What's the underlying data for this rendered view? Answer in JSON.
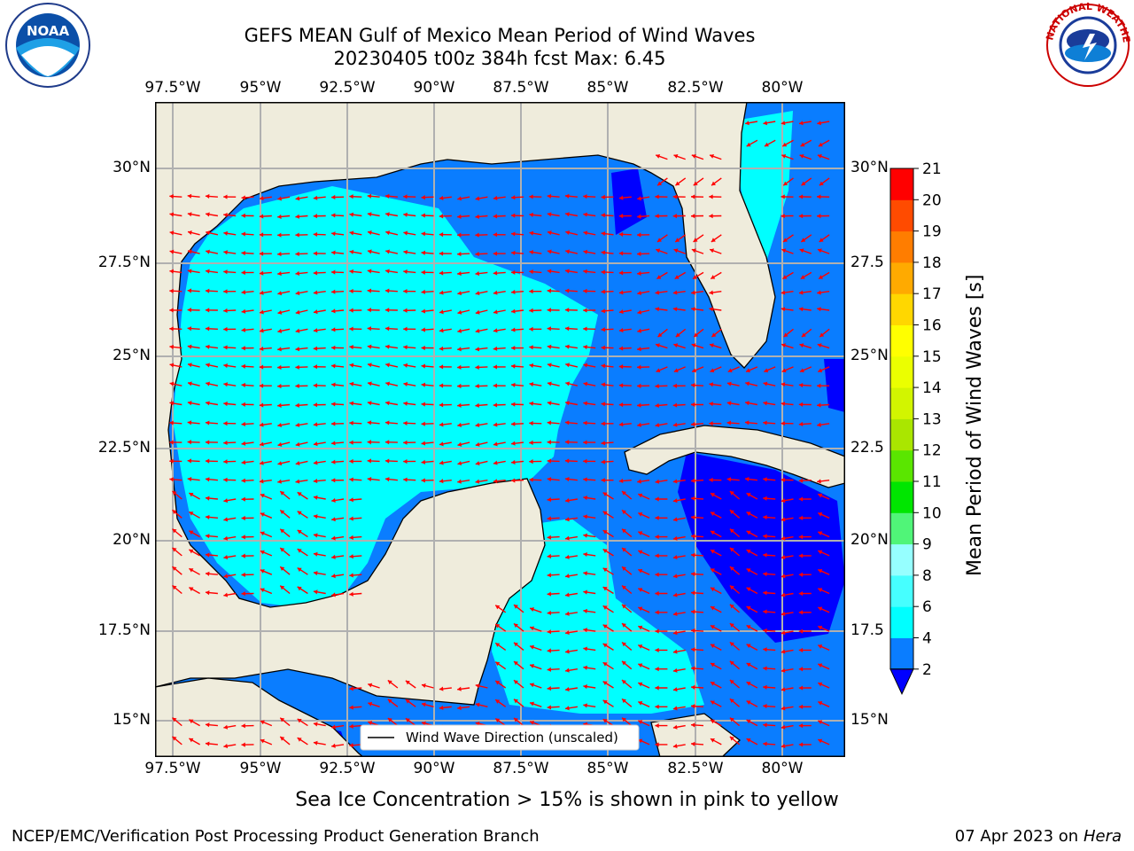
{
  "title": {
    "line1": "GEFS MEAN Gulf of Mexico Mean Period of Wind Waves",
    "line2": "20230405 t00z 384h fcst   Max: 6.45"
  },
  "map": {
    "lon_labels": [
      "97.5°W",
      "95°W",
      "92.5°W",
      "90°W",
      "87.5°W",
      "85°W",
      "82.5°W",
      "80°W"
    ],
    "lat_labels_left": [
      "30°N",
      "27.5°N",
      "25°N",
      "22.5°N",
      "20°N",
      "17.5°N",
      "15°N"
    ],
    "lat_labels_right": [
      "30°N",
      "27.5",
      "25°N",
      "22.5",
      "20°N",
      "17.5",
      "15°N"
    ],
    "legend_label": "Wind Wave Direction (unscaled)",
    "land_color": "#efecdc",
    "arrow_color": "#ff0000"
  },
  "colorbar": {
    "label": "Mean Period of Wind Waves [s]",
    "ticks": [
      "2",
      "4",
      "6",
      "8",
      "9",
      "10",
      "11",
      "12",
      "13",
      "14",
      "15",
      "16",
      "17",
      "18",
      "19",
      "20",
      "21"
    ],
    "colors": [
      "#0000ff",
      "#0a7dff",
      "#00ffff",
      "#46ffff",
      "#96ffff",
      "#50f578",
      "#00e600",
      "#5ae600",
      "#aae600",
      "#d2f500",
      "#ebff00",
      "#ffff00",
      "#ffd700",
      "#ffaa00",
      "#ff7d00",
      "#ff4b00",
      "#ff0000"
    ]
  },
  "logos": {
    "noaa_text": "NOAA",
    "nws_text": "NATIONAL WEATHER SERVICE"
  },
  "note": "Sea Ice Concentration > 15% is shown in pink to yellow",
  "footer": {
    "left": "NCEP/EMC/Verification Post Processing Product Generation Branch",
    "right_prefix": "07 Apr 2023 on ",
    "right_host": "Hera"
  }
}
